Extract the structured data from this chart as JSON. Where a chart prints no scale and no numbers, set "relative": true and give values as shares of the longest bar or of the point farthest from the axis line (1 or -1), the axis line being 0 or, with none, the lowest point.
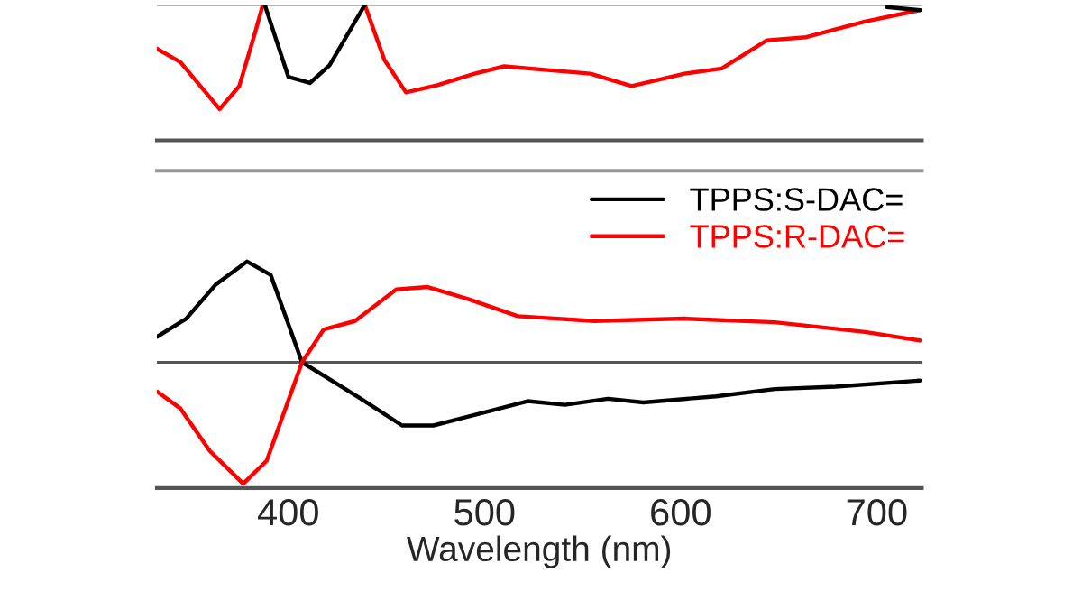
{
  "chart_data": [
    {
      "type": "line",
      "relative": true,
      "xlim": [
        333,
        723
      ],
      "xticks": [
        400,
        500,
        600,
        700
      ],
      "tick_labels": false,
      "ref_lines": [
        {
          "axis": "y",
          "value": 0,
          "color": "#999999"
        }
      ],
      "series": [
        {
          "color": "#ff0000",
          "x": [
            333,
            345,
            365,
            375,
            383,
            387,
            413,
            439,
            449,
            460,
            476,
            495,
            510,
            535,
            554,
            575,
            602,
            621,
            644,
            664,
            694,
            722
          ],
          "values": [
            -0.42,
            -0.55,
            -1.0,
            -0.78,
            -0.27,
            0,
            null,
            0,
            -0.53,
            -0.84,
            -0.77,
            -0.66,
            -0.59,
            -0.63,
            -0.66,
            -0.78,
            -0.66,
            -0.61,
            -0.34,
            -0.31,
            -0.16,
            -0.05
          ]
        },
        {
          "color": "#000000",
          "x": [
            388,
            400,
            411,
            421,
            439,
            570,
            705,
            722
          ],
          "values": [
            0,
            -0.69,
            -0.75,
            -0.58,
            0,
            null,
            -0.02,
            -0.05
          ]
        }
      ]
    },
    {
      "type": "line",
      "relative": true,
      "xlim": [
        333,
        723
      ],
      "xticks": [
        400,
        500,
        600,
        700
      ],
      "tick_labels": "x",
      "xlabel": "Wavelength (nm)",
      "legend": "top right",
      "ref_lines": [
        {
          "axis": "y",
          "value": 0,
          "color": "#555555"
        }
      ],
      "series": [
        {
          "name": "TPPS:S-DAC=",
          "color": "#000000",
          "x": [
            333,
            348,
            363,
            379,
            391,
            407,
            425,
            437,
            458,
            474,
            498,
            522,
            541,
            563,
            581,
            618,
            648,
            679,
            722
          ],
          "values": [
            0.21,
            0.36,
            0.64,
            0.83,
            0.72,
            0.0,
            -0.18,
            -0.3,
            -0.52,
            -0.52,
            -0.42,
            -0.32,
            -0.35,
            -0.3,
            -0.33,
            -0.28,
            -0.22,
            -0.2,
            -0.15
          ]
        },
        {
          "name": "TPPS:R-DAC=",
          "color": "#ff0000",
          "x": [
            333,
            345,
            360,
            377,
            389,
            407,
            418,
            434,
            455,
            471,
            492,
            517,
            556,
            602,
            648,
            694,
            722
          ],
          "values": [
            -0.24,
            -0.38,
            -0.73,
            -1.0,
            -0.81,
            0,
            0.27,
            0.34,
            0.6,
            0.62,
            0.52,
            0.38,
            0.34,
            0.36,
            0.33,
            0.25,
            0.18
          ]
        }
      ]
    }
  ]
}
